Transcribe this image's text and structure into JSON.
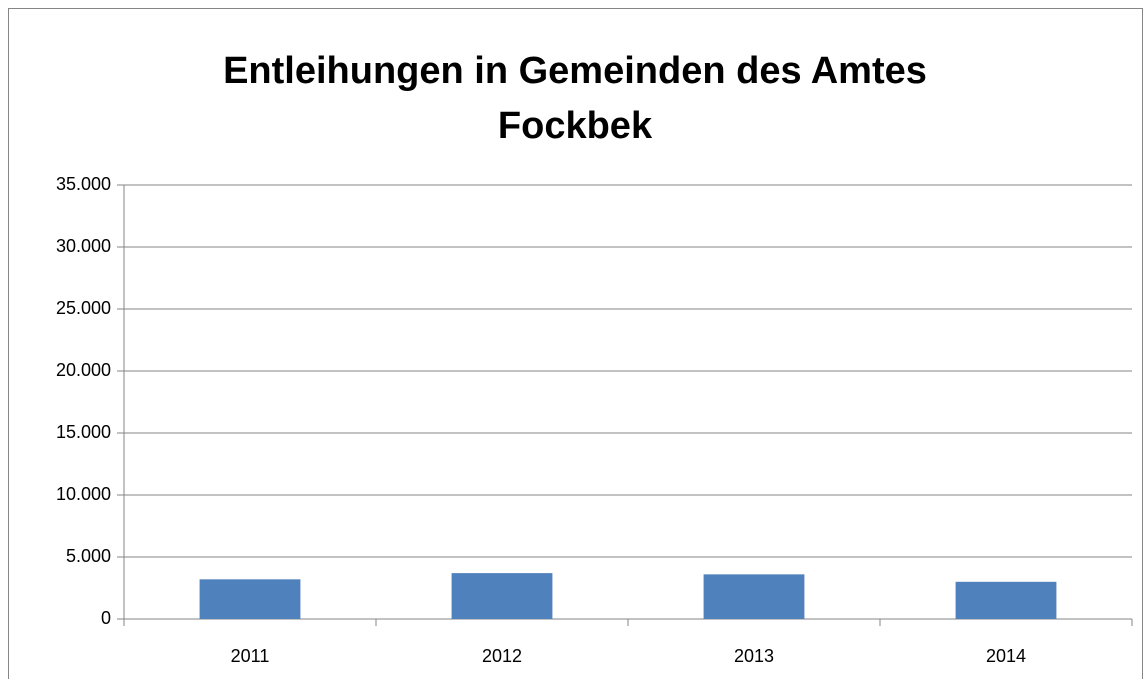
{
  "chart_data": {
    "type": "bar",
    "title": "Entleihungen in Gemeinden des Amtes Fockbek",
    "categories": [
      "2011",
      "2012",
      "2013",
      "2014"
    ],
    "values": [
      3200,
      3700,
      3600,
      3000
    ],
    "color": "#4f81bd",
    "ylim": [
      0,
      35000
    ],
    "yticks": [
      0,
      {
        "value": 5000,
        "label": "5.000"
      },
      {
        "value": 10000,
        "label": "10.000"
      },
      {
        "value": 15000,
        "label": "15.000"
      },
      {
        "value": 20000,
        "label": "20.000"
      },
      {
        "value": 25000,
        "label": "25.000"
      },
      {
        "value": 30000,
        "label": "30.000"
      },
      {
        "value": 35000,
        "label": "35.000"
      }
    ],
    "grid": true
  }
}
